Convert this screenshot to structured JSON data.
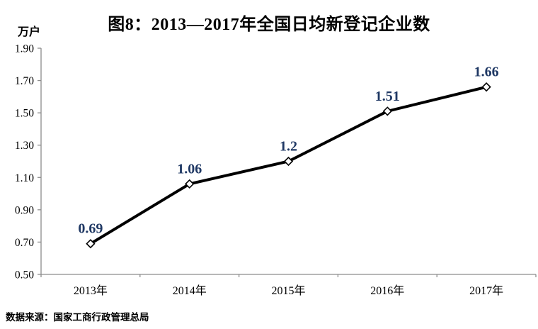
{
  "chart_data": {
    "type": "line",
    "title": "图8：2013—2017年全国日均新登记企业数",
    "unit_label": "万户",
    "categories": [
      "2013年",
      "2014年",
      "2015年",
      "2016年",
      "2017年"
    ],
    "values": [
      0.69,
      1.06,
      1.2,
      1.51,
      1.66
    ],
    "data_labels": [
      "0.69",
      "1.06",
      "1.2",
      "1.51",
      "1.66"
    ],
    "ylim": [
      0.5,
      1.9
    ],
    "y_ticks": [
      0.5,
      0.7,
      0.9,
      1.1,
      1.3,
      1.5,
      1.7,
      1.9
    ],
    "y_tick_labels": [
      "0.50",
      "0.70",
      "0.90",
      "1.10",
      "1.30",
      "1.50",
      "1.70",
      "1.90"
    ],
    "xlabel": "",
    "ylabel": "万户",
    "grid": false,
    "legend": "none",
    "marker": "white-diamond",
    "colors": {
      "title": "#000000",
      "line": "#000000",
      "data_label": "#1F3864",
      "axis": "#8C8C8C",
      "tick_label": "#000000",
      "background": "#FFFFFF"
    }
  },
  "footer": {
    "source": "数据来源：国家工商行政管理总局"
  }
}
